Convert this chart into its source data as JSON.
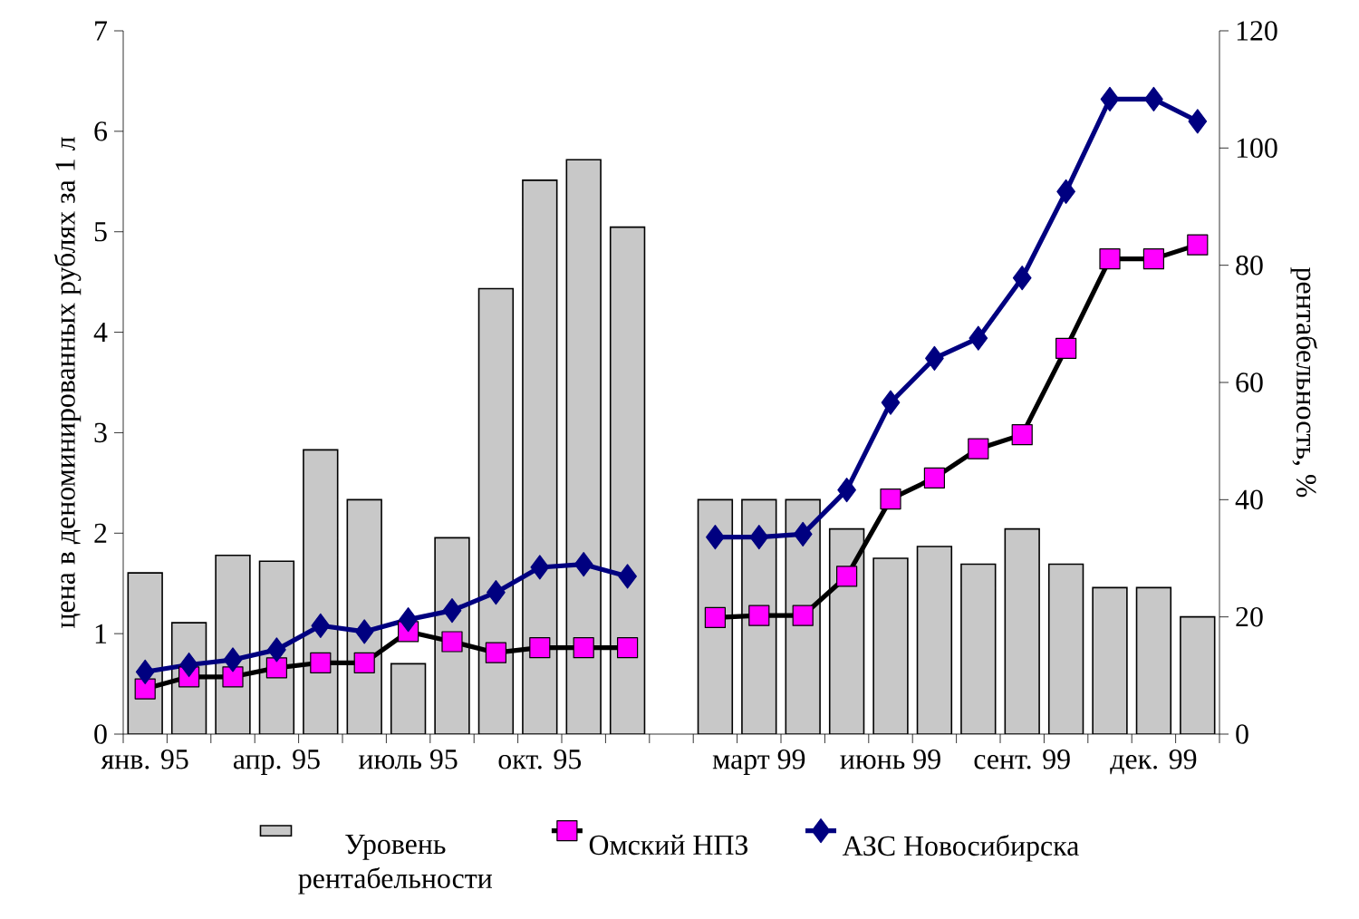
{
  "chart_data": {
    "type": "line",
    "ylabel": "цена  в деноминированных рублях за 1 л",
    "y2label": "рентабельность, %",
    "categories": [
      "янв. 95",
      null,
      null,
      "апр. 95",
      null,
      null,
      "июль 95",
      null,
      null,
      "окт. 95",
      null,
      null,
      null,
      null,
      "март 99",
      null,
      null,
      "июнь 99",
      null,
      null,
      "сент. 99",
      null,
      null,
      "дек. 99",
      null
    ],
    "series": [
      {
        "name": "Уровень рентабельности",
        "type": "bar",
        "axis": "y2",
        "color": "#c8c8c8",
        "values": [
          27.5,
          19,
          30.5,
          29.5,
          48.5,
          40,
          12,
          33.5,
          76,
          94.5,
          98,
          86.5,
          null,
          40,
          40,
          40,
          35,
          30,
          32,
          29,
          35,
          29,
          25,
          25,
          20
        ]
      },
      {
        "name": "Омский НПЗ",
        "marker": "square",
        "color": "#ff00ff",
        "values": [
          0.45,
          0.57,
          0.57,
          0.66,
          0.71,
          0.71,
          1.02,
          0.92,
          0.81,
          0.86,
          0.86,
          0.86,
          null,
          1.16,
          1.18,
          1.18,
          1.57,
          2.34,
          2.55,
          2.84,
          2.98,
          3.84,
          4.73,
          4.73,
          4.87
        ]
      },
      {
        "name": "АЗС Новосибирска",
        "marker": "diamond",
        "color": "#000080",
        "values": [
          0.62,
          0.69,
          0.74,
          0.84,
          1.08,
          1.02,
          1.14,
          1.23,
          1.41,
          1.66,
          1.69,
          1.57,
          null,
          1.96,
          1.96,
          1.99,
          2.43,
          3.3,
          3.74,
          3.94,
          4.54,
          5.4,
          6.32,
          6.32,
          6.1
        ]
      }
    ],
    "ylim": [
      0,
      7
    ],
    "yticks": [
      0,
      1,
      2,
      3,
      4,
      5,
      6,
      7
    ],
    "y2lim": [
      0,
      120
    ],
    "y2ticks": [
      0,
      20,
      40,
      60,
      80,
      100,
      120
    ],
    "legend": "bottom",
    "grid": false
  }
}
